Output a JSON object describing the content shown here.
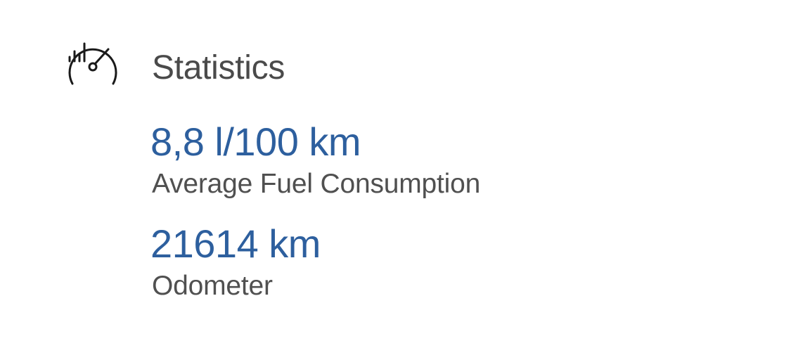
{
  "statistics": {
    "icon": "speedometer-icon",
    "title": "Statistics",
    "accent_color": "#2d5f9e",
    "items": [
      {
        "value": "8,8 l/100 km",
        "label": "Average Fuel Consumption"
      },
      {
        "value": "21614 km",
        "label": "Odometer"
      }
    ]
  }
}
